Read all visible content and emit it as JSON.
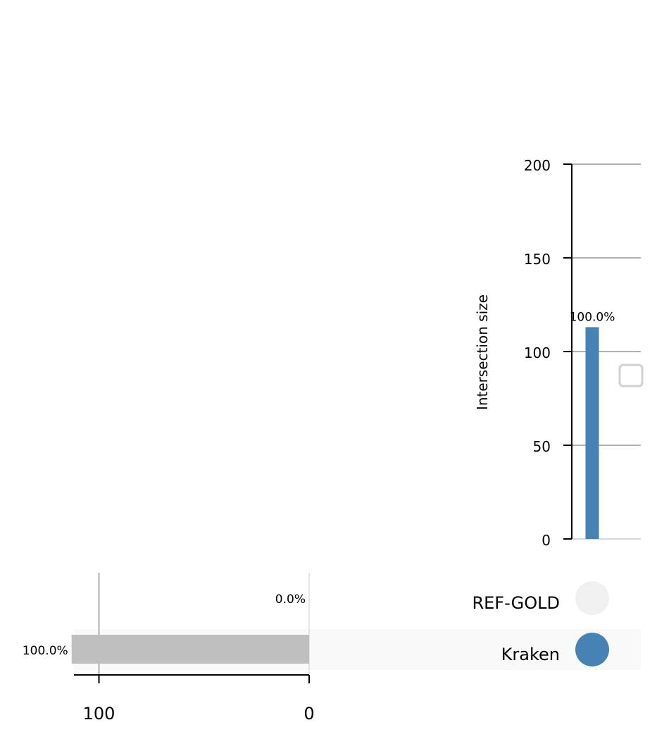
{
  "chart_data": [
    {
      "type": "bar",
      "name": "intersection-size",
      "ylabel": "Intersection size",
      "ylim": [
        0,
        200
      ],
      "yticks": [
        0,
        50,
        100,
        150,
        200
      ],
      "grid": true,
      "bars": [
        {
          "value": 113,
          "label": "100.0%",
          "color": "#4682b4"
        }
      ]
    },
    {
      "type": "bar",
      "name": "set-size",
      "orientation": "horizontal",
      "xlim": [
        112,
        0
      ],
      "xticks": [
        100,
        0
      ],
      "grid": true,
      "categories": [
        "REF-GOLD",
        "Kraken"
      ],
      "values": [
        0,
        113
      ],
      "labels": [
        "0.0%",
        "100.0%"
      ],
      "color": "#bfbfbf"
    }
  ],
  "matrix": {
    "sets": [
      "REF-GOLD",
      "Kraken"
    ],
    "columns": [
      {
        "membership": [
          false,
          true
        ]
      }
    ],
    "active_color": "#4682b4",
    "inactive_color": "#f0f0f0"
  }
}
